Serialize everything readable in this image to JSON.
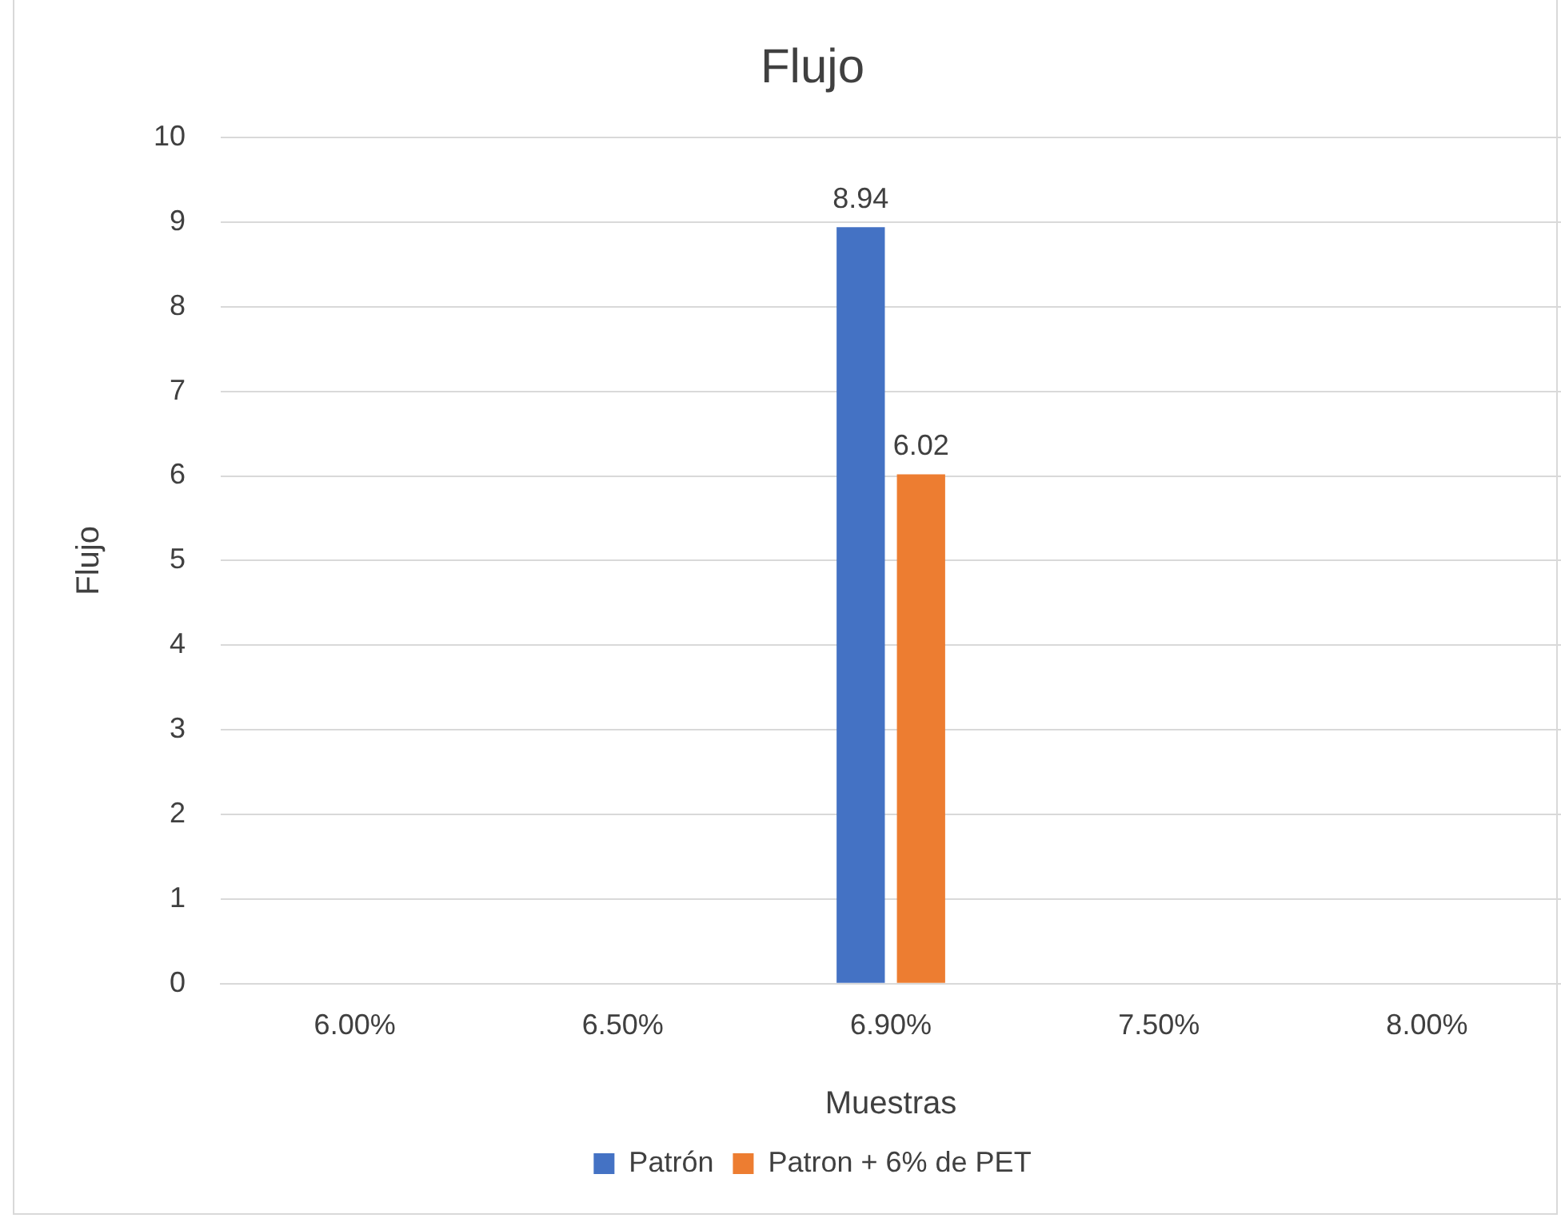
{
  "chart_data": {
    "type": "bar",
    "title": "Flujo",
    "xlabel": "Muestras",
    "ylabel": "Flujo",
    "categories": [
      "6.00%",
      "6.50%",
      "6.90%",
      "7.50%",
      "8.00%"
    ],
    "series": [
      {
        "name": "Patrón",
        "color": "#4472c4",
        "values": [
          null,
          null,
          8.94,
          null,
          null
        ]
      },
      {
        "name": "Patron + 6% de PET",
        "color": "#ed7d31",
        "values": [
          null,
          null,
          6.02,
          null,
          null
        ]
      }
    ],
    "ylim": [
      0,
      10
    ],
    "yticks": [
      0,
      1,
      2,
      3,
      4,
      5,
      6,
      7,
      8,
      9,
      10
    ],
    "grid": "y",
    "legend": "bottom",
    "data_labels": true
  }
}
